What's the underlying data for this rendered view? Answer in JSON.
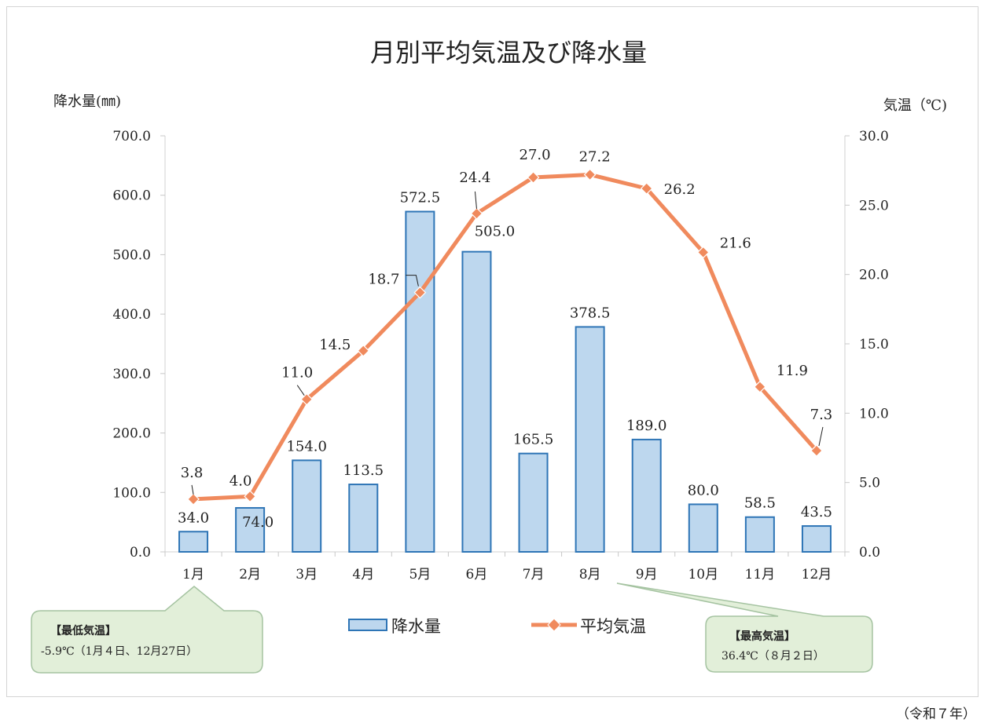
{
  "chart_data": {
    "type": "bar",
    "title": "月別平均気温及び降水量",
    "categories": [
      "1月",
      "2月",
      "3月",
      "4月",
      "5月",
      "6月",
      "7月",
      "8月",
      "9月",
      "10月",
      "11月",
      "12月"
    ],
    "series": [
      {
        "name": "降水量",
        "type": "bar",
        "axis": "left",
        "values": [
          34.0,
          74.0,
          154.0,
          113.5,
          572.5,
          505.0,
          165.5,
          378.5,
          189.0,
          80.0,
          58.5,
          43.5
        ],
        "labels": [
          "34.0",
          "74.0",
          "154.0",
          "113.5",
          "572.5",
          "505.0",
          "165.5",
          "378.5",
          "189.0",
          "80.0",
          "58.5",
          "43.5"
        ]
      },
      {
        "name": "平均気温",
        "type": "line",
        "axis": "right",
        "values": [
          3.8,
          4.0,
          11.0,
          14.5,
          18.7,
          24.4,
          27.0,
          27.2,
          26.2,
          21.6,
          11.9,
          7.3
        ],
        "labels": [
          "3.8",
          "4.0",
          "11.0",
          "14.5",
          "18.7",
          "24.4",
          "27.0",
          "27.2",
          "26.2",
          "21.6",
          "11.9",
          "7.3"
        ]
      }
    ],
    "y_left": {
      "label": "降水量(㎜)",
      "ylim": [
        0,
        700
      ],
      "ticks": [
        "0.0",
        "100.0",
        "200.0",
        "300.0",
        "400.0",
        "500.0",
        "600.0",
        "700.0"
      ]
    },
    "y_right": {
      "label": "気温（℃)",
      "ylim": [
        0,
        30
      ],
      "ticks": [
        "0.0",
        "5.0",
        "10.0",
        "15.0",
        "20.0",
        "25.0",
        "30.0"
      ]
    },
    "grid": false,
    "legend": "bottom-center",
    "colors": {
      "bar_fill": "#bdd7ee",
      "bar_stroke": "#2e75b6",
      "line": "#f08a5d",
      "marker": "#f08a5d"
    },
    "annotations": [
      {
        "title": "【最低気温】",
        "text": "-5.9℃（1月４日、12月27日）",
        "points_to": "1月"
      },
      {
        "title": "【最高気温】",
        "text": "36.4℃（８月２日）",
        "points_to": "8月"
      }
    ]
  },
  "footer": {
    "note": "（令和７年）"
  }
}
